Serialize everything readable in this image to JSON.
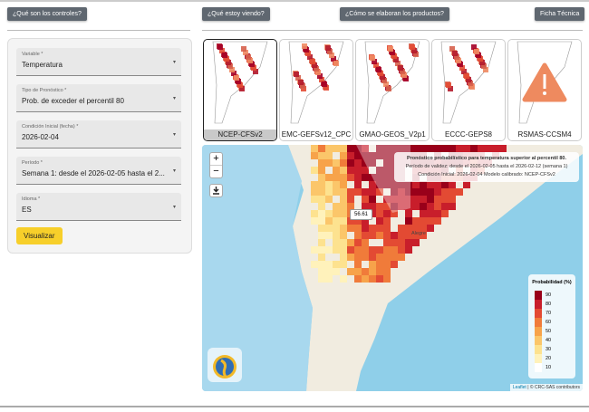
{
  "header": {
    "buttons": [
      "¿Qué son los controles?",
      "¿Qué estoy viendo?",
      "¿Cómo se elaboran los productos?",
      "Ficha Técnica"
    ]
  },
  "controls": {
    "fields": [
      {
        "label": "Variable *",
        "value": "Temperatura"
      },
      {
        "label": "Tipo de Pronóstico *",
        "value": "Prob. de exceder el percentil 80"
      },
      {
        "label": "Condición Inicial (fecha) *",
        "value": "2026-02-04"
      },
      {
        "label": "Período *",
        "value": "Semana 1: desde el 2026-02-05 hasta el 2..."
      },
      {
        "label": "Idioma *",
        "value": "ES"
      }
    ],
    "submit": "Visualizar"
  },
  "models": [
    "NCEP-CFSv2",
    "EMC-GEFSv12_CPC",
    "GMAO-GEOS_V2p1",
    "ECCC-GEPS8",
    "RSMAS-CCSM4"
  ],
  "map": {
    "zoom": [
      "+",
      "−"
    ],
    "info": [
      "Pronóstico probabilístico para temperatura superior al percentil 80.",
      "Período de validez: desde el 2026-02-05 hasta el 2026-02-12 (semana 1)",
      "Condición Inicial: 2026-02-04 Modelo calibrado: NCEP-CFSv2"
    ],
    "tooltip": "56.61",
    "place": "Alegre",
    "legend": {
      "title": "Probabilidad (%)",
      "levels": [
        90,
        80,
        70,
        60,
        50,
        40,
        30,
        20,
        10
      ]
    },
    "attribution_link": "Leaflet",
    "attribution": "| © CRC-SAS contributors"
  }
}
